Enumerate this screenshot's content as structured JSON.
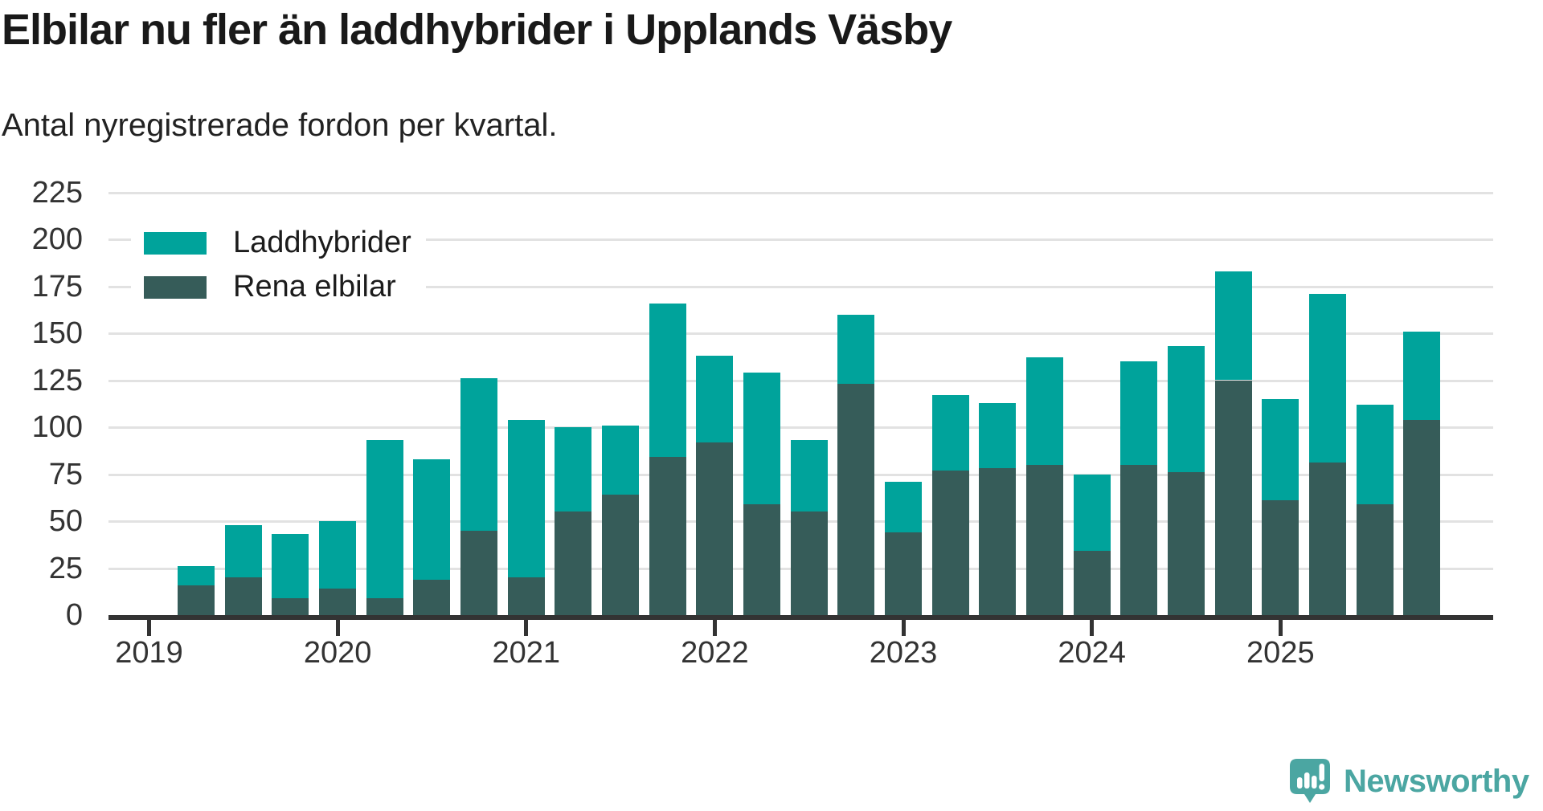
{
  "title": "Elbilar nu fler än laddhybrider i Upplands Väsby",
  "subtitle": "Antal nyregistrerade fordon per kvartal.",
  "branding": {
    "logo_text": "Newsworthy",
    "logo_icon": "newsworthy-speech-bubble-bar-chart-icon",
    "logo_color": "#4ba6a2"
  },
  "colors": {
    "laddhybrider": "#00a39b",
    "rena_elbilar": "#365c59",
    "axis": "#333333",
    "gridline": "#e2e2e2",
    "title_text": "#191919",
    "tick_text": "#333333",
    "background": "#ffffff"
  },
  "chart_data": {
    "type": "bar",
    "stacked": true,
    "title": "Elbilar nu fler än laddhybrider i Upplands Väsby",
    "subtitle": "Antal nyregistrerade fordon per kvartal.",
    "xlabel": "",
    "ylabel": "",
    "x": [
      "2019-Q2",
      "2019-Q3",
      "2019-Q4",
      "2020-Q1",
      "2020-Q2",
      "2020-Q3",
      "2020-Q4",
      "2021-Q1",
      "2021-Q2",
      "2021-Q3",
      "2021-Q4",
      "2022-Q1",
      "2022-Q2",
      "2022-Q3",
      "2022-Q4",
      "2023-Q1",
      "2023-Q2",
      "2023-Q3",
      "2023-Q4",
      "2024-Q1",
      "2024-Q2",
      "2024-Q3",
      "2024-Q4",
      "2025-Q1",
      "2025-Q2",
      "2025-Q3",
      "2025-Q4"
    ],
    "series": [
      {
        "name": "Laddhybrider",
        "color": "#00a39b",
        "values": [
          10,
          28,
          34,
          36,
          84,
          64,
          81,
          84,
          45,
          37,
          82,
          46,
          70,
          38,
          37,
          27,
          40,
          35,
          57,
          41,
          55,
          67,
          58,
          54,
          90,
          53,
          47
        ]
      },
      {
        "name": "Rena elbilar",
        "color": "#365c59",
        "values": [
          16,
          20,
          9,
          14,
          9,
          19,
          45,
          20,
          55,
          64,
          84,
          92,
          59,
          55,
          123,
          44,
          77,
          78,
          80,
          34,
          80,
          76,
          125,
          61,
          81,
          59,
          104
        ]
      }
    ],
    "stack_totals": [
      26,
      48,
      43,
      50,
      93,
      83,
      126,
      104,
      100,
      101,
      166,
      138,
      129,
      93,
      160,
      71,
      117,
      113,
      137,
      75,
      135,
      143,
      183,
      115,
      171,
      112,
      151
    ],
    "y_ticks": [
      0,
      25,
      50,
      75,
      100,
      125,
      150,
      175,
      200,
      225
    ],
    "ylim": [
      0,
      235
    ],
    "x_tick_labels": [
      "2019",
      "2020",
      "2021",
      "2022",
      "2023",
      "2024",
      "2025"
    ],
    "grid": "horizontal",
    "legend_position": "top-left-inside"
  }
}
